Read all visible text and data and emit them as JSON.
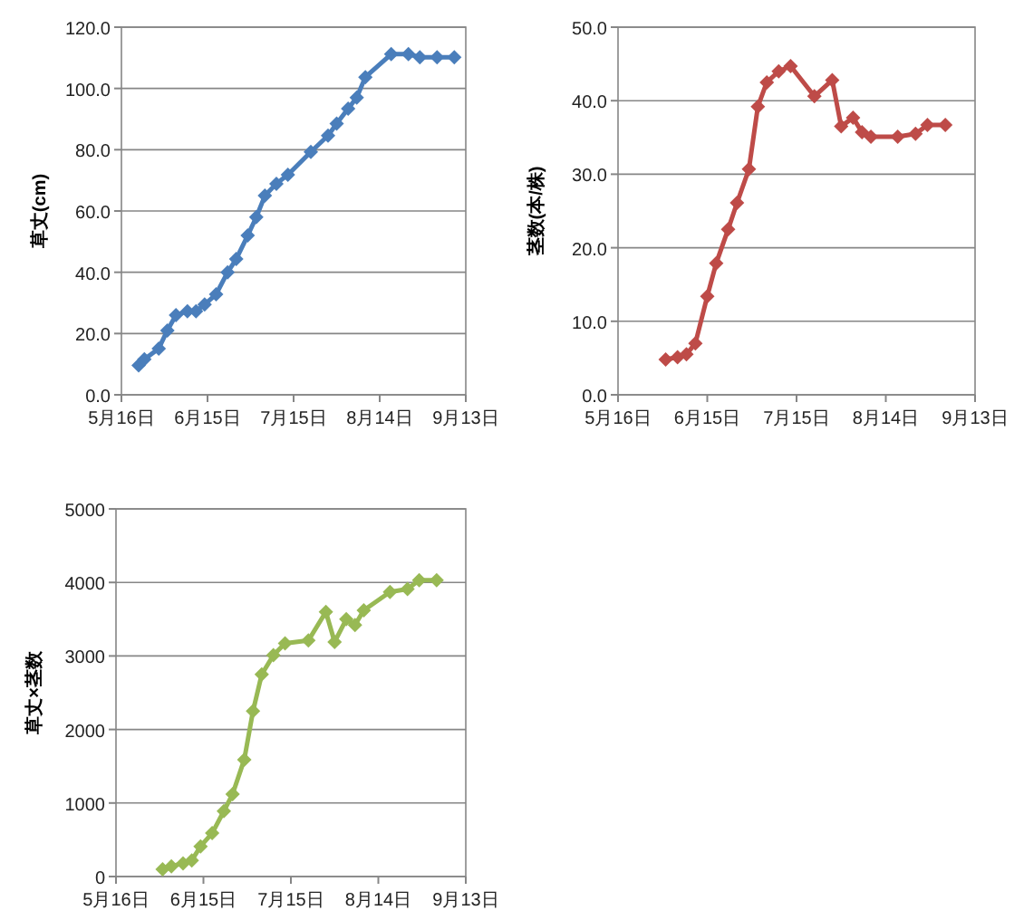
{
  "chart_data": [
    {
      "type": "line",
      "ylabel": "草丈(cm)",
      "grid": "y",
      "marker": "diamond",
      "line_style": "solid",
      "xlim": [
        "--05-16",
        "--09-13"
      ],
      "xticks": [
        {
          "value": "--05-16",
          "label": "5月16日"
        },
        {
          "value": "--06-15",
          "label": "6月15日"
        },
        {
          "value": "--07-15",
          "label": "7月15日"
        },
        {
          "value": "--08-14",
          "label": "8月14日"
        },
        {
          "value": "--09-13",
          "label": "9月13日"
        }
      ],
      "ylim": [
        0,
        120
      ],
      "yticks": [
        {
          "value": 0,
          "label": "0.0"
        },
        {
          "value": 20,
          "label": "20.0"
        },
        {
          "value": 40,
          "label": "40.0"
        },
        {
          "value": 60,
          "label": "60.0"
        },
        {
          "value": 80,
          "label": "80.0"
        },
        {
          "value": 100,
          "label": "100.0"
        },
        {
          "value": 120,
          "label": "120.0"
        }
      ],
      "x": [
        "--05-22",
        "--05-24",
        "--05-29",
        "--06-01",
        "--06-04",
        "--06-08",
        "--06-11",
        "--06-14",
        "--06-18",
        "--06-22",
        "--06-25",
        "--06-29",
        "--07-02",
        "--07-05",
        "--07-09",
        "--07-13",
        "--07-21",
        "--07-27",
        "--07-30",
        "--08-03",
        "--08-06",
        "--08-09",
        "--08-18",
        "--08-24",
        "--08-28",
        "--09-03",
        "--09-09"
      ],
      "series": [
        {
          "color": "#4a7ebb",
          "values": [
            9.6,
            11.6,
            15.1,
            21,
            26,
            27.3,
            27.3,
            29.5,
            32.8,
            40,
            44.3,
            52,
            58,
            65,
            68.9,
            71.8,
            79.3,
            84.6,
            88.5,
            93.4,
            97,
            103.7,
            111.2,
            111.2,
            110.2,
            110.2,
            110.2
          ]
        }
      ]
    },
    {
      "type": "line",
      "ylabel": "茎数(本/株)",
      "grid": "y",
      "marker": "diamond",
      "line_style": "solid",
      "xlim": [
        "--05-16",
        "--09-13"
      ],
      "xticks": [
        {
          "value": "--05-16",
          "label": "5月16日"
        },
        {
          "value": "--06-15",
          "label": "6月15日"
        },
        {
          "value": "--07-15",
          "label": "7月15日"
        },
        {
          "value": "--08-14",
          "label": "8月14日"
        },
        {
          "value": "--09-13",
          "label": "9月13日"
        }
      ],
      "ylim": [
        0,
        50
      ],
      "yticks": [
        {
          "value": 0,
          "label": "0.0"
        },
        {
          "value": 10,
          "label": "10.0"
        },
        {
          "value": 20,
          "label": "20.0"
        },
        {
          "value": 30,
          "label": "30.0"
        },
        {
          "value": 40,
          "label": "40.0"
        },
        {
          "value": 50,
          "label": "50.0"
        }
      ],
      "x": [
        "--06-01",
        "--06-05",
        "--06-08",
        "--06-11",
        "--06-15",
        "--06-18",
        "--06-22",
        "--06-25",
        "--06-29",
        "--07-02",
        "--07-05",
        "--07-09",
        "--07-13",
        "--07-21",
        "--07-27",
        "--07-30",
        "--08-03",
        "--08-06",
        "--08-09",
        "--08-18",
        "--08-24",
        "--08-28",
        "--09-03"
      ],
      "series": [
        {
          "color": "#be4b48",
          "values": [
            4.8,
            5.1,
            5.5,
            7.0,
            13.4,
            17.9,
            22.5,
            26.1,
            30.7,
            39.2,
            42.5,
            44.0,
            44.7,
            40.6,
            42.8,
            36.5,
            37.7,
            35.7,
            35.1,
            35.1,
            35.5,
            36.7,
            36.7
          ]
        }
      ]
    },
    {
      "type": "line",
      "ylabel": "草丈×茎数",
      "grid": "y",
      "marker": "diamond",
      "line_style": "solid",
      "xlim": [
        "--05-16",
        "--09-13"
      ],
      "xticks": [
        {
          "value": "--05-16",
          "label": "5月16日"
        },
        {
          "value": "--06-15",
          "label": "6月15日"
        },
        {
          "value": "--07-15",
          "label": "7月15日"
        },
        {
          "value": "--08-14",
          "label": "8月14日"
        },
        {
          "value": "--09-13",
          "label": "9月13日"
        }
      ],
      "ylim": [
        0,
        5000
      ],
      "yticks": [
        0,
        1000,
        2000,
        3000,
        4000,
        5000
      ],
      "x": [
        "--06-01",
        "--06-04",
        "--06-08",
        "--06-11",
        "--06-14",
        "--06-18",
        "--06-22",
        "--06-25",
        "--06-29",
        "--07-02",
        "--07-05",
        "--07-09",
        "--07-13",
        "--07-21",
        "--07-27",
        "--07-30",
        "--08-03",
        "--08-06",
        "--08-09",
        "--08-18",
        "--08-24",
        "--08-28",
        "--09-03"
      ],
      "series": [
        {
          "color": "#98b954",
          "values": [
            100,
            140,
            180,
            220,
            410,
            590,
            890,
            1120,
            1590,
            2250,
            2750,
            3010,
            3170,
            3210,
            3600,
            3190,
            3500,
            3420,
            3620,
            3870,
            3910,
            4030,
            4030
          ]
        }
      ]
    }
  ]
}
